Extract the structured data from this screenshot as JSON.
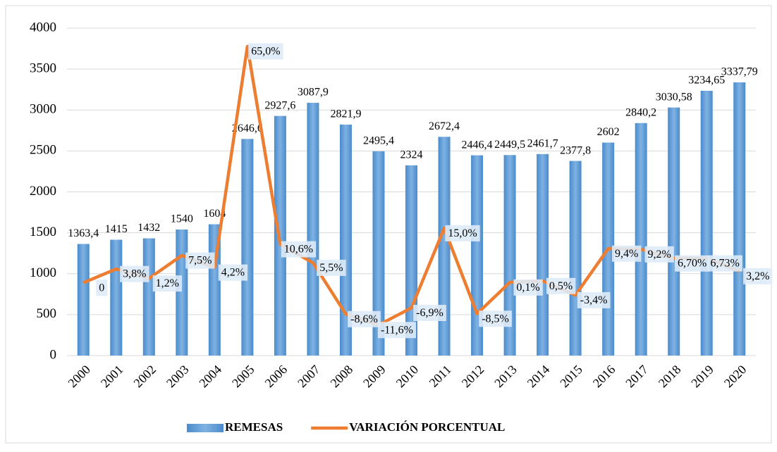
{
  "chart_data": {
    "type": "bar",
    "categories": [
      "2000",
      "2001",
      "2002",
      "2003",
      "2004",
      "2005",
      "2006",
      "2007",
      "2008",
      "2009",
      "2010",
      "2011",
      "2012",
      "2013",
      "2014",
      "2015",
      "2016",
      "2017",
      "2018",
      "2019",
      "2020"
    ],
    "series": [
      {
        "name": "REMESAS",
        "type": "bar",
        "color": "#5b9bd5",
        "values": [
          1363.4,
          1415,
          1432,
          1540,
          1604,
          2646.6,
          2927.6,
          3087.9,
          2821.9,
          2495.4,
          2324,
          2672.4,
          2446.4,
          2449.5,
          2461.7,
          2377.8,
          2602,
          2840.2,
          3030.58,
          3234.65,
          3337.79
        ],
        "value_labels": [
          "1363,4",
          "1415",
          "1432",
          "1540",
          "1604",
          "2646,6",
          "2927,6",
          "3087,9",
          "2821,9",
          "2495,4",
          "2324",
          "2672,4",
          "2446,4",
          "2449,5",
          "2461,7",
          "2377,8",
          "2602",
          "2840,2",
          "3030,58",
          "3234,65",
          "3337,79"
        ]
      },
      {
        "name": "VARIACIÓN PORCENTUAL",
        "type": "line",
        "color": "#ed7d31",
        "axis": "y2",
        "values": [
          0,
          3.8,
          1.2,
          7.5,
          4.2,
          65.0,
          10.6,
          5.5,
          -8.6,
          -11.6,
          -6.9,
          15.0,
          -8.5,
          0.1,
          0.5,
          -3.4,
          9.4,
          9.2,
          6.7,
          6.73,
          3.2
        ],
        "value_labels": [
          "0",
          "3,8%",
          "1,2%",
          "7,5%",
          "4,2%",
          "65,0%",
          "10,6%",
          "5,5%",
          "-8,6%",
          "-11,6%",
          "-6,9%",
          "15,0%",
          "-8,5%",
          "0,1%",
          "0,5%",
          "-3,4%",
          "9,4%",
          "9,2%",
          "6,70%",
          "6,73%",
          "3,2%"
        ]
      }
    ],
    "ylim": [
      0,
      4000
    ],
    "yticks": [
      0,
      500,
      1000,
      1500,
      2000,
      2500,
      3000,
      3500,
      4000
    ],
    "y2lim": [
      -20,
      70
    ],
    "grid": true,
    "legend": "bottom"
  }
}
